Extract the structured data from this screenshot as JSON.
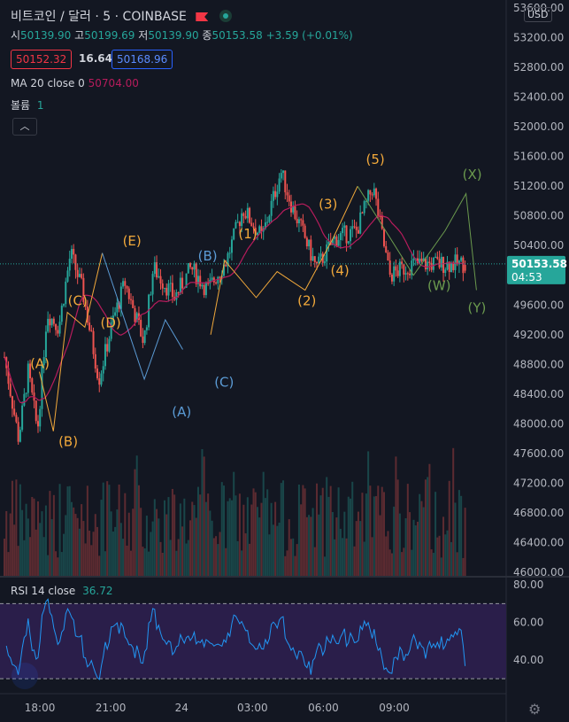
{
  "header": {
    "symbol": "비트코인 / 달러",
    "interval": "5",
    "exchange": "COINBASE",
    "currency": "USD"
  },
  "ohlc": {
    "open_label": "시",
    "open": "50139.90",
    "high_label": "고",
    "high": "50199.69",
    "low_label": "저",
    "low": "50139.90",
    "close_label": "종",
    "close": "50153.58",
    "change": "+3.59 (+0.01%)"
  },
  "quote": {
    "bid": "50152.32",
    "spread": "16.64",
    "ask": "50168.96"
  },
  "ma": {
    "label": "MA 20 close 0",
    "value": "50704.00"
  },
  "volume": {
    "label": "볼륨",
    "value": "1"
  },
  "rsi": {
    "label": "RSI 14 close",
    "value": "36.72"
  },
  "price_tag": {
    "price": "50153.58",
    "countdown": "04:53"
  },
  "colors": {
    "up": "#26a69a",
    "down": "#ef5350",
    "ma": "#b71c5c",
    "rsi": "#2196f3",
    "rsi_band": "#2a1e4a",
    "wave_orange": "#f2a93b",
    "wave_blue": "#5b9bd5",
    "wave_green": "#6b9a4e"
  },
  "chart_data": [
    {
      "type": "candlestick",
      "x_ticks": [
        "18:00",
        "21:00",
        "24",
        "03:00",
        "06:00",
        "09:00"
      ],
      "y_ticks": [
        46000,
        46400,
        46800,
        47200,
        47600,
        48000,
        48400,
        48800,
        49200,
        49600,
        50000,
        50400,
        50800,
        51200,
        51600,
        52000,
        52400,
        52800,
        53200,
        53600
      ],
      "ylim": [
        45950,
        53650
      ],
      "price_path_hours": [
        0,
        0.6,
        1.0,
        1.4,
        1.8,
        2.3,
        2.8,
        3.3,
        4.0,
        4.6,
        5.1,
        5.9,
        6.3,
        7.2,
        7.9,
        8.6,
        9.4,
        10.1,
        10.9,
        11.7,
        12.2,
        12.6,
        13.2,
        14.0,
        14.9,
        15.6,
        16.3,
        17.3,
        18.6,
        19.2,
        19.5
      ],
      "price_path": [
        48900,
        47800,
        48700,
        47900,
        49500,
        49300,
        50300,
        49800,
        48600,
        49400,
        49900,
        49100,
        50100,
        49700,
        50100,
        49800,
        50200,
        50900,
        50500,
        51400,
        50900,
        50600,
        50100,
        50500,
        50600,
        51200,
        50000,
        50153,
        50153,
        50153,
        50153
      ],
      "ma_value_last": 50704.0,
      "last_price": 50153.58
    },
    {
      "type": "line",
      "name": "RSI 14 close",
      "y_ticks": [
        40,
        60,
        80
      ],
      "bands": [
        30,
        70
      ],
      "last": 36.72
    }
  ],
  "waves": [
    {
      "label": "(A)",
      "color": "orange",
      "t": 1.5,
      "price": 48750
    },
    {
      "label": "(B)",
      "color": "orange",
      "t": 2.7,
      "price": 47700
    },
    {
      "label": "(C)",
      "color": "orange",
      "t": 3.1,
      "price": 49600
    },
    {
      "label": "(D)",
      "color": "orange",
      "t": 4.5,
      "price": 49300
    },
    {
      "label": "(E)",
      "color": "orange",
      "t": 5.4,
      "price": 50400
    },
    {
      "label": "(A)",
      "color": "blue",
      "t": 7.5,
      "price": 48100
    },
    {
      "label": "(B)",
      "color": "blue",
      "t": 8.6,
      "price": 50200
    },
    {
      "label": "(C)",
      "color": "blue",
      "t": 9.3,
      "price": 48500
    },
    {
      "label": "(1)",
      "color": "orange",
      "t": 10.3,
      "price": 50500
    },
    {
      "label": "(2)",
      "color": "orange",
      "t": 12.8,
      "price": 49600
    },
    {
      "label": "(3)",
      "color": "orange",
      "t": 13.7,
      "price": 50900
    },
    {
      "label": "(4)",
      "color": "orange",
      "t": 14.2,
      "price": 50000
    },
    {
      "label": "(5)",
      "color": "orange",
      "t": 15.7,
      "price": 51500
    },
    {
      "label": "(W)",
      "color": "green",
      "t": 18.4,
      "price": 49800
    },
    {
      "label": "(X)",
      "color": "green",
      "t": 19.8,
      "price": 51300
    },
    {
      "label": "(Y)",
      "color": "green",
      "t": 20.0,
      "price": 49500
    }
  ]
}
